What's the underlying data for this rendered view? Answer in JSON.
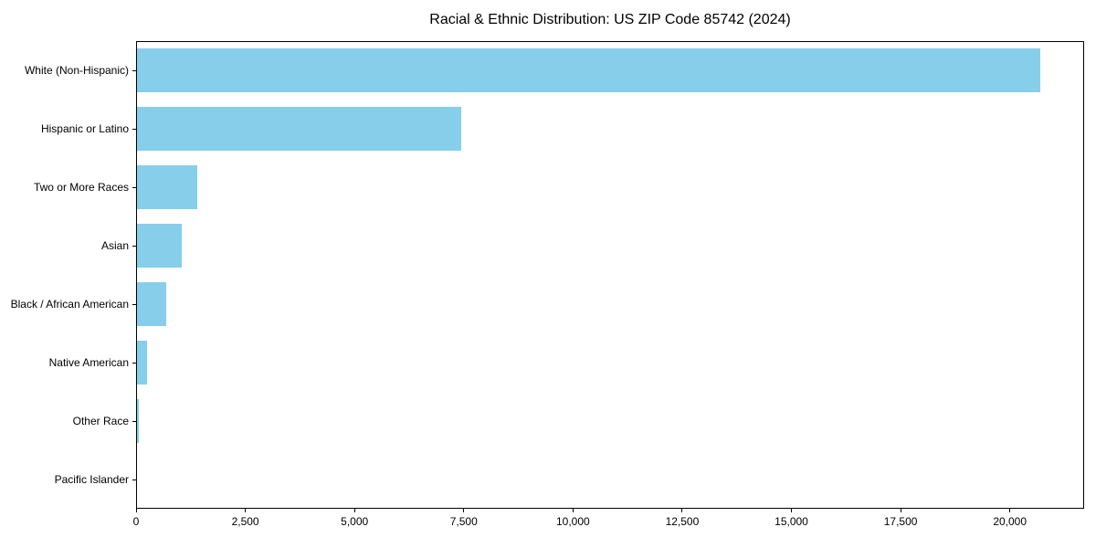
{
  "chart_data": {
    "type": "bar",
    "orientation": "horizontal",
    "title": "Racial & Ethnic Distribution: US ZIP Code 85742 (2024)",
    "categories": [
      "White (Non-Hispanic)",
      "Hispanic or Latino",
      "Two or More Races",
      "Asian",
      "Black / African American",
      "Native American",
      "Other Race",
      "Pacific Islander"
    ],
    "values": [
      20700,
      7440,
      1400,
      1040,
      690,
      245,
      70,
      15
    ],
    "xlabel": "",
    "ylabel": "",
    "xlim": [
      0,
      21700
    ],
    "x_ticks": {
      "values": [
        0,
        2500,
        5000,
        7500,
        10000,
        12500,
        15000,
        17500,
        20000
      ],
      "labels": [
        "0",
        "2,500",
        "5,000",
        "7,500",
        "10,000",
        "12,500",
        "15,000",
        "17,500",
        "20,000"
      ]
    },
    "bar_color": "#87CEEB",
    "axis_color": "#000000",
    "text_color": "#000000",
    "background_color": "#ffffff",
    "grid": false,
    "legend": "none"
  }
}
